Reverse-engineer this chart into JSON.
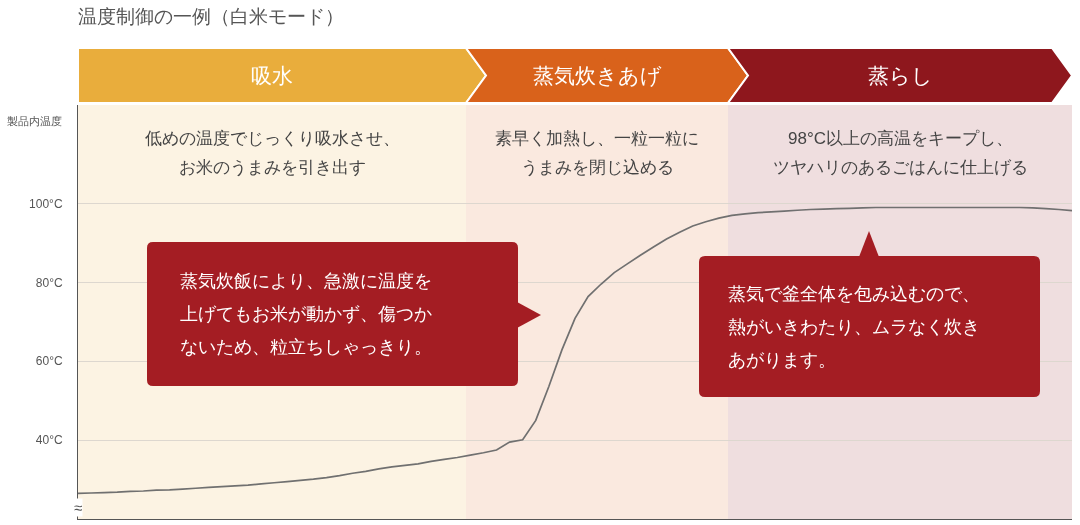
{
  "chart_data": {
    "type": "line",
    "title": "温度制御の一例（白米モード）",
    "ylabel": "製品内温度",
    "categories": [
      null,
      null,
      null,
      null,
      null,
      null,
      null,
      null,
      null,
      null,
      null,
      null,
      null,
      null,
      null,
      null,
      null,
      null,
      null,
      null,
      null,
      null,
      null,
      null,
      null,
      null,
      null,
      null,
      null,
      null,
      null,
      null,
      null,
      null,
      null,
      null,
      null,
      null,
      null,
      null,
      null,
      null,
      null,
      null,
      null,
      null,
      null,
      null,
      null,
      null,
      null,
      null,
      null,
      null,
      null,
      null,
      null,
      null,
      null,
      null,
      null,
      null,
      null,
      null,
      null,
      null,
      null,
      null,
      null,
      null,
      null,
      null,
      null,
      null,
      null,
      null,
      null
    ],
    "series": [
      {
        "color": "#707070",
        "values": [
          26.5,
          26.6,
          26.7,
          26.8,
          27.0,
          27.1,
          27.3,
          27.4,
          27.6,
          27.8,
          28.0,
          28.2,
          28.4,
          28.6,
          28.9,
          29.2,
          29.5,
          29.8,
          30.1,
          30.5,
          31.0,
          31.6,
          32.1,
          32.7,
          33.2,
          33.6,
          34.0,
          34.6,
          35.1,
          35.6,
          36.2,
          36.8,
          37.5,
          39.5,
          40.1,
          45.0,
          53.6,
          62.9,
          70.9,
          76.4,
          79.6,
          82.5,
          84.7,
          86.9,
          89.0,
          91.0,
          92.7,
          94.3,
          95.4,
          96.3,
          97.0,
          97.4,
          97.7,
          97.9,
          98.1,
          98.3,
          98.5,
          98.6,
          98.7,
          98.8,
          98.9,
          99.0,
          99.0,
          99.0,
          99.0,
          99.0,
          99.0,
          99.0,
          99.0,
          99.0,
          99.0,
          99.0,
          99.0,
          98.9,
          98.7,
          98.5,
          98.2
        ]
      }
    ],
    "ylim": [
      20,
      125
    ],
    "yticks": [
      {
        "value": 40,
        "label": "40°C"
      },
      {
        "value": 60,
        "label": "60°C"
      },
      {
        "value": 80,
        "label": "80°C"
      },
      {
        "value": 100,
        "label": "100°C"
      }
    ],
    "grid": "y",
    "annotations": [
      "吸水",
      "蒸気炊きあげ",
      "蒸らし",
      "低めの温度でじっくり吸水させ、お米のうまみを引き出す",
      "素早く加熱し、一粒一粒にうまみを閉じ込める",
      "98°C以上の高温をキープし、ツヤハリのあるごはんに仕上げる",
      "蒸気炊飯により、急激に温度を上げてもお米が動かず、傷つかないため、粒立ちしゃっきり。",
      "蒸気で釜全体を包み込むので、熱がいきわたり、ムラなく炊きあがります。",
      "≈"
    ]
  }
}
